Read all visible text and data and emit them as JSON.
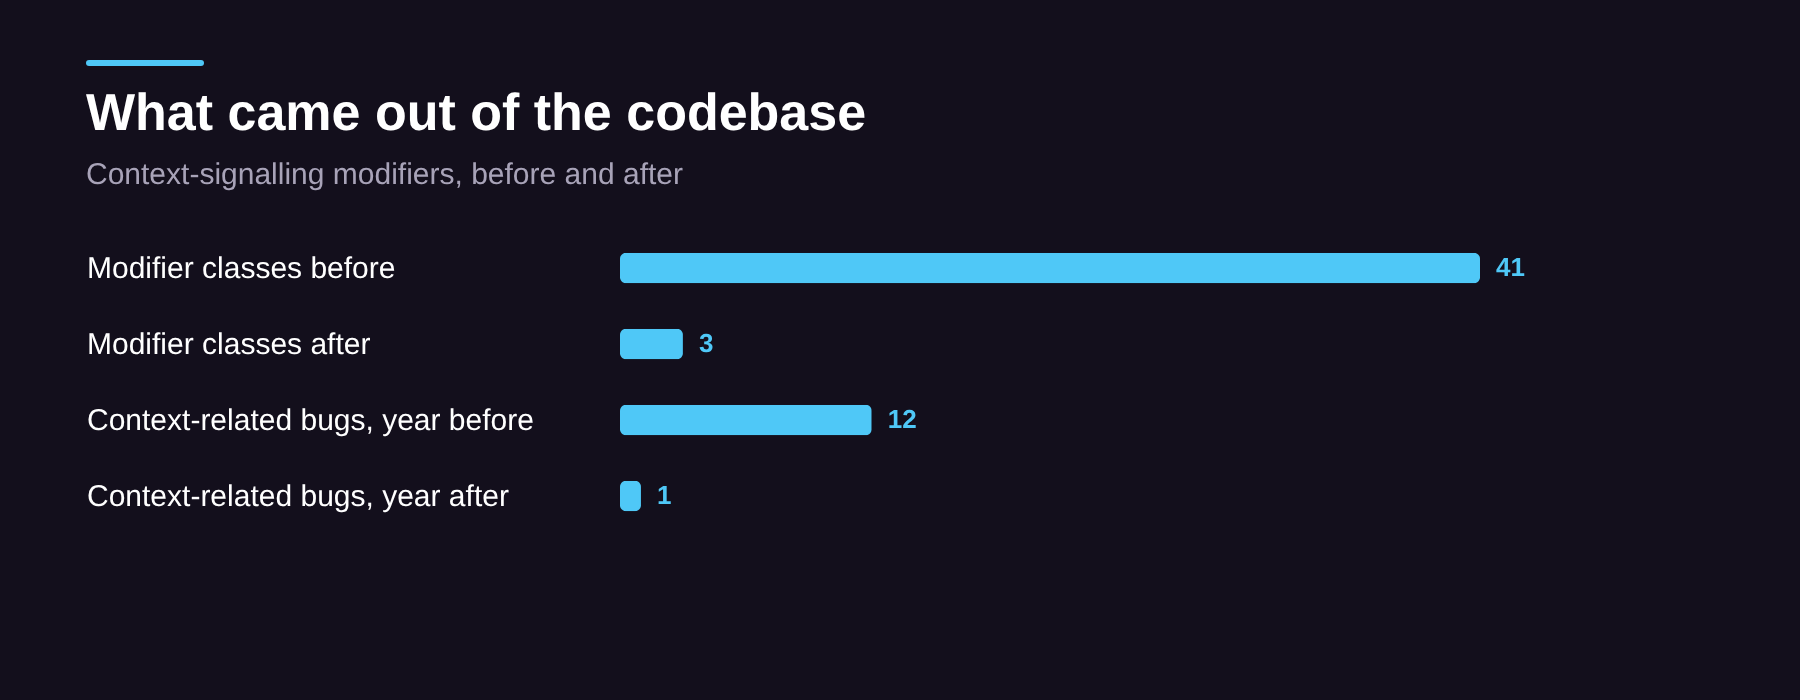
{
  "chart_data": {
    "type": "bar",
    "orientation": "horizontal",
    "title": "What came out of the codebase",
    "subtitle": "Context-signalling modifiers, before and after",
    "categories": [
      "Modifier classes before",
      "Modifier classes after",
      "Context-related bugs, year before",
      "Context-related bugs, year after"
    ],
    "values": [
      41,
      3,
      12,
      1
    ],
    "color": "#4fc8f7",
    "data_labels": true,
    "tick_labels": "y"
  }
}
